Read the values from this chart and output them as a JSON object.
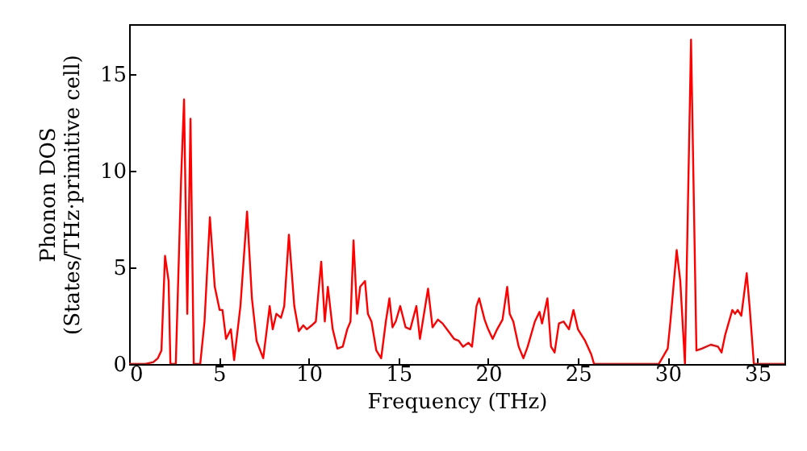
{
  "chart_data": {
    "type": "line",
    "xlabel": "Frequency (THz)",
    "ylabel": "Phonon DOS\n(States/THz·primitive cell)",
    "xlim": [
      0,
      36.5
    ],
    "ylim": [
      0,
      17.6
    ],
    "xticks": [
      0,
      5,
      10,
      15,
      20,
      25,
      30,
      35
    ],
    "yticks": [
      0,
      5,
      10,
      15
    ],
    "grid": false,
    "marker": "none",
    "line_style": "solid",
    "series": [
      {
        "color": "#ff0000",
        "x": [
          0,
          0.9,
          1.35,
          1.6,
          1.8,
          2.0,
          2.2,
          2.3,
          2.6,
          2.9,
          3.06,
          3.24,
          3.42,
          3.6,
          3.96,
          4.2,
          4.5,
          4.77,
          5.04,
          5.2,
          5.4,
          5.67,
          5.85,
          6.2,
          6.57,
          6.84,
          7.1,
          7.47,
          7.83,
          8.0,
          8.2,
          8.46,
          8.64,
          8.9,
          9.2,
          9.45,
          9.7,
          9.9,
          10.17,
          10.4,
          10.7,
          10.9,
          11.07,
          11.34,
          11.6,
          11.9,
          12.15,
          12.33,
          12.5,
          12.7,
          12.87,
          13.14,
          13.3,
          13.5,
          13.77,
          14.04,
          14.3,
          14.5,
          14.67,
          14.85,
          15.1,
          15.4,
          15.66,
          16.0,
          16.2,
          16.65,
          16.9,
          17.2,
          17.46,
          17.7,
          18.1,
          18.36,
          18.6,
          18.9,
          19.1,
          19.35,
          19.5,
          19.8,
          20.0,
          20.25,
          20.5,
          20.8,
          21.06,
          21.2,
          21.4,
          21.7,
          21.96,
          22.2,
          22.6,
          22.86,
          23.0,
          23.3,
          23.5,
          23.7,
          23.94,
          24.2,
          24.5,
          24.75,
          25.0,
          25.4,
          25.74,
          25.9,
          29.5,
          30.0,
          30.15,
          30.5,
          30.7,
          30.96,
          31.3,
          31.6,
          31.9,
          32.4,
          32.8,
          33.0,
          33.2,
          33.6,
          33.75,
          33.9,
          34.1,
          34.4,
          34.56,
          34.8,
          36.5
        ],
        "values": [
          0,
          0,
          0.1,
          0.3,
          0.7,
          5.6,
          4.3,
          0,
          0,
          9.7,
          13.7,
          2.6,
          12.7,
          0,
          0,
          2.2,
          7.6,
          4.0,
          2.8,
          2.8,
          1.3,
          1.8,
          0.2,
          3.0,
          7.9,
          3.4,
          1.2,
          0.3,
          3.0,
          1.8,
          2.6,
          2.4,
          3.0,
          6.7,
          3.0,
          1.7,
          2.0,
          1.8,
          2.0,
          2.2,
          5.3,
          2.2,
          4.0,
          1.8,
          0.8,
          0.9,
          1.8,
          2.2,
          6.4,
          2.6,
          4.0,
          4.3,
          2.6,
          2.2,
          0.7,
          0.3,
          2.2,
          3.4,
          1.9,
          2.2,
          3.0,
          1.9,
          1.8,
          3.0,
          1.3,
          3.9,
          1.9,
          2.3,
          2.1,
          1.8,
          1.3,
          1.2,
          0.9,
          1.1,
          0.9,
          3.0,
          3.4,
          2.3,
          1.8,
          1.3,
          1.8,
          2.3,
          4.0,
          2.6,
          2.2,
          0.9,
          0.3,
          0.9,
          2.2,
          2.7,
          2.1,
          3.4,
          0.9,
          0.6,
          2.1,
          2.2,
          1.8,
          2.8,
          1.8,
          1.2,
          0.5,
          0,
          0,
          0.8,
          2.2,
          5.9,
          4.3,
          0,
          16.8,
          0.7,
          0.8,
          1.0,
          0.9,
          0.6,
          1.5,
          2.8,
          2.6,
          2.8,
          2.5,
          4.7,
          3.0,
          0,
          0
        ]
      }
    ]
  }
}
